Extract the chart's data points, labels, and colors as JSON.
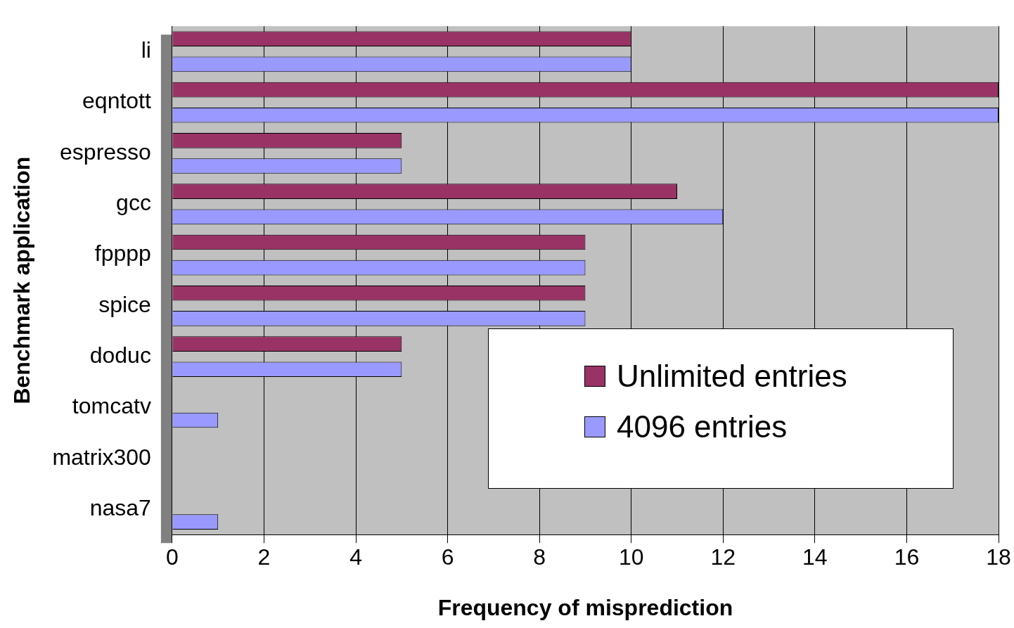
{
  "chart_data": {
    "type": "bar",
    "orientation": "horizontal",
    "xlabel": "Frequency of misprediction",
    "ylabel": "Benchmark application",
    "categories": [
      "li",
      "eqntott",
      "espresso",
      "gcc",
      "fpppp",
      "spice",
      "doduc",
      "tomcatv",
      "matrix300",
      "nasa7"
    ],
    "series": [
      {
        "name": "Unlimited entries",
        "color": "#993366",
        "values": [
          10,
          18,
          5,
          11,
          9,
          9,
          5,
          0,
          0,
          0
        ]
      },
      {
        "name": "4096 entries",
        "color": "#9999ff",
        "values": [
          10,
          18,
          5,
          12,
          9,
          9,
          5,
          1,
          0,
          1
        ]
      }
    ],
    "xlim": [
      0,
      18
    ],
    "xticks": [
      0,
      2,
      4,
      6,
      8,
      10,
      12,
      14,
      16,
      18
    ],
    "grid": "x",
    "legend": "bottom right"
  }
}
